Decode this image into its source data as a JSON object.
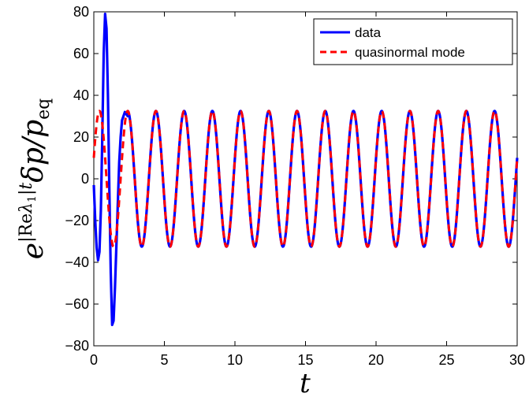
{
  "chart_data": {
    "type": "line",
    "xlabel": "t",
    "ylabel": "e^{|Reλ1|t} δp/p_eq",
    "ylabel_parts": {
      "base": "e",
      "exp_open": "|",
      "exp_re": "Re",
      "exp_lambda": "λ",
      "exp_sub": "1",
      "exp_close": "|t",
      "body": "δp/p",
      "body_sub": "eq"
    },
    "xlim": [
      0,
      30
    ],
    "ylim": [
      -80,
      80
    ],
    "xticks": [
      0,
      5,
      10,
      15,
      20,
      25,
      30
    ],
    "yticks": [
      -80,
      -60,
      -40,
      -20,
      0,
      20,
      40,
      60,
      80
    ],
    "grid": false,
    "legend_position": "top-right",
    "series": [
      {
        "name": "data",
        "color": "#0000ff",
        "style": "solid",
        "x": [
          0,
          0.1,
          0.2,
          0.3,
          0.4,
          0.5,
          0.6,
          0.7,
          0.8,
          0.9,
          1.0,
          1.1,
          1.2,
          1.3,
          1.4,
          1.5,
          1.6,
          1.7,
          1.8,
          1.9,
          2.0,
          2.2,
          2.4
        ],
        "y": [
          -3,
          -20,
          -33,
          -39,
          -35,
          -15,
          20,
          60,
          79,
          72,
          40,
          -5,
          -45,
          -70,
          -68,
          -52,
          -32,
          -12,
          8,
          20,
          28,
          32,
          30
        ],
        "continuation": {
          "type": "sinusoid",
          "t_start": 2.4,
          "t_end": 30,
          "amplitude": 32.5,
          "period": 2.0,
          "peak_at": 2.4
        }
      },
      {
        "name": "quasinormal mode",
        "color": "#ff0000",
        "style": "dashed",
        "model": {
          "type": "sinusoid",
          "t_start": 0,
          "t_end": 30,
          "amplitude": 32.5,
          "period": 2.0,
          "peak_at": 0.4
        }
      }
    ]
  }
}
